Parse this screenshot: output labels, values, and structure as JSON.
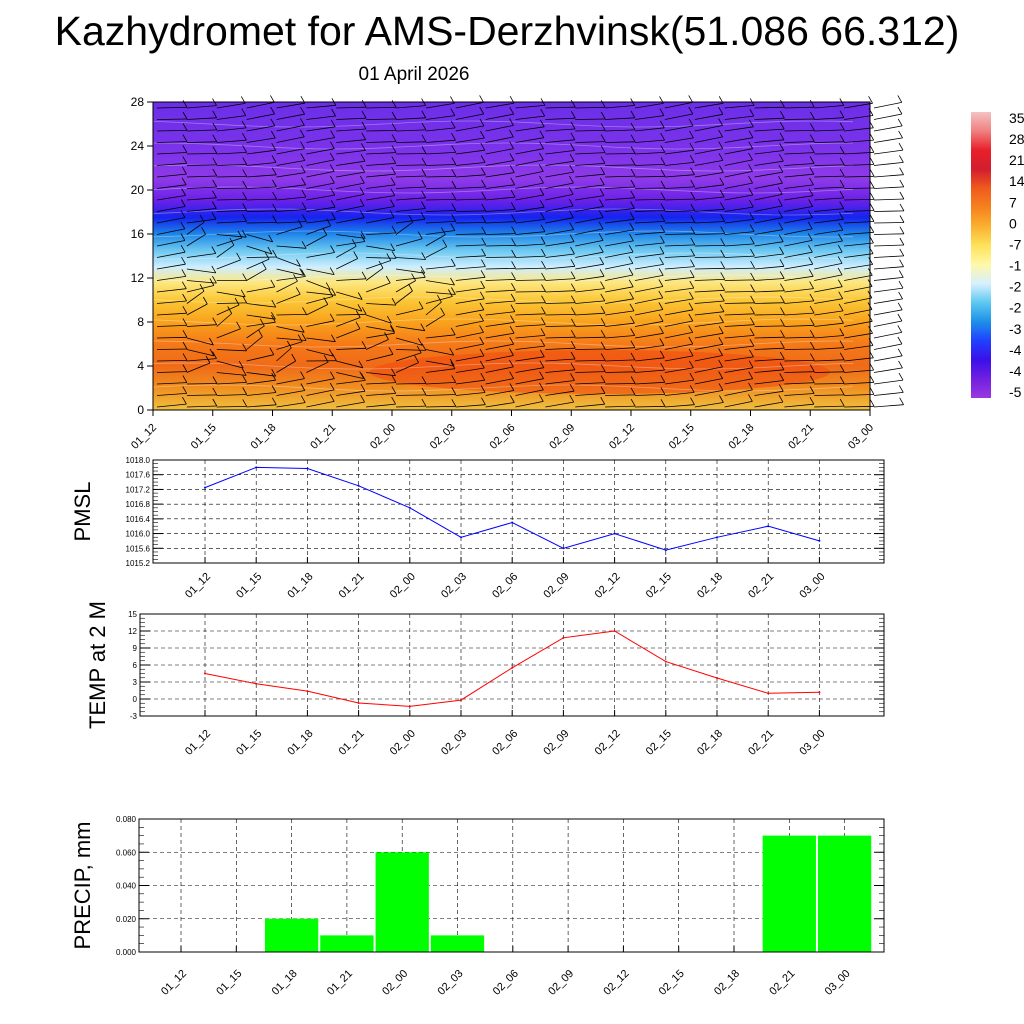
{
  "header": {
    "title": "Kazhydromet for AMS-Derzhvinsk(51.086 66.312)",
    "subtitle": "01 April 2026"
  },
  "colors": {
    "pmsl_line": "#0000ff",
    "temp_line": "#ff0000",
    "precip_bar": "#00ff00",
    "grid": "#000000"
  },
  "chart_data": [
    {
      "type": "heatmap",
      "name": "profile",
      "categories": [
        "01_12",
        "01_15",
        "01_18",
        "01_21",
        "02_00",
        "02_03",
        "02_06",
        "02_09",
        "02_12",
        "02_15",
        "02_18",
        "02_21",
        "03_00"
      ],
      "y_ticks": [
        "0",
        "4",
        "8",
        "12",
        "16",
        "20",
        "24",
        "28"
      ],
      "ylim": [
        0,
        28
      ],
      "colorbar_labels": [
        "35",
        "28",
        "21",
        "14",
        "7",
        "0",
        "-7",
        "-1",
        "-2",
        "-2",
        "-3",
        "-4",
        "-4",
        "-5"
      ],
      "colorbar_colors": [
        "#f4c2c2",
        "#f08080",
        "#e8202a",
        "#d21e2e",
        "#f05a1e",
        "#f5821e",
        "#fbb030",
        "#fde25a",
        "#fff8a8",
        "#d8f0ff",
        "#5cc8f0",
        "#1e90e8",
        "#2040ff",
        "#3a10e8",
        "#7020e0",
        "#9a38e0"
      ],
      "field_colors": [
        "#f0c040",
        "#f09020",
        "#f06a18",
        "#f57a18",
        "#f9a21c",
        "#fbc838",
        "#fde780",
        "#cfeeff",
        "#6cc8f0",
        "#1e86e8",
        "#1424ee",
        "#6a20e8",
        "#8e3ae8",
        "#7a32ea",
        "#6c2ee8"
      ],
      "field_levels": [
        0,
        2,
        4,
        6,
        8,
        10,
        11.6,
        13,
        14.5,
        16,
        17.5,
        19,
        21,
        24,
        28
      ]
    },
    {
      "type": "line",
      "name": "PMSL",
      "ylabel": "PMSL",
      "categories": [
        "01_12",
        "01_15",
        "01_18",
        "01_21",
        "02_00",
        "02_03",
        "02_06",
        "02_09",
        "02_12",
        "02_15",
        "02_18",
        "02_21",
        "03_00"
      ],
      "values": [
        1017.25,
        1017.8,
        1017.77,
        1017.3,
        1016.7,
        1015.9,
        1016.3,
        1015.6,
        1016.0,
        1015.55,
        1015.9,
        1016.2,
        1015.8
      ],
      "ylim": [
        1015.2,
        1018.0
      ],
      "y_ticks": [
        "1018.0",
        "1017.6",
        "1017.2",
        "1016.8",
        "1016.4",
        "1016.0",
        "1015.6",
        "1015.2"
      ]
    },
    {
      "type": "line",
      "name": "TEMP",
      "ylabel": "TEMP at 2 M",
      "categories": [
        "01_12",
        "01_15",
        "01_18",
        "01_21",
        "02_00",
        "02_03",
        "02_06",
        "02_09",
        "02_12",
        "02_15",
        "02_18",
        "02_21",
        "03_00"
      ],
      "values": [
        4.5,
        2.7,
        1.4,
        -0.7,
        -1.3,
        -0.2,
        5.5,
        10.8,
        12.0,
        6.6,
        3.7,
        1.0,
        1.2
      ],
      "ylim": [
        -3,
        15
      ],
      "y_ticks": [
        "15",
        "12",
        "9",
        "6",
        "3",
        "0",
        "-3"
      ]
    },
    {
      "type": "bar",
      "name": "PRECIP",
      "ylabel": "PRECIP, mm",
      "categories": [
        "01_12",
        "01_15",
        "01_18",
        "01_21",
        "02_00",
        "02_03",
        "02_06",
        "02_09",
        "02_12",
        "02_15",
        "02_18",
        "02_21",
        "03_00"
      ],
      "values": [
        0,
        0,
        0.02,
        0.01,
        0.06,
        0.01,
        0,
        0,
        0,
        0,
        0,
        0.07,
        0.07
      ],
      "ylim": [
        0,
        0.08
      ],
      "y_ticks": [
        "0.080",
        "0.060",
        "0.040",
        "0.020",
        "0.000"
      ]
    }
  ]
}
